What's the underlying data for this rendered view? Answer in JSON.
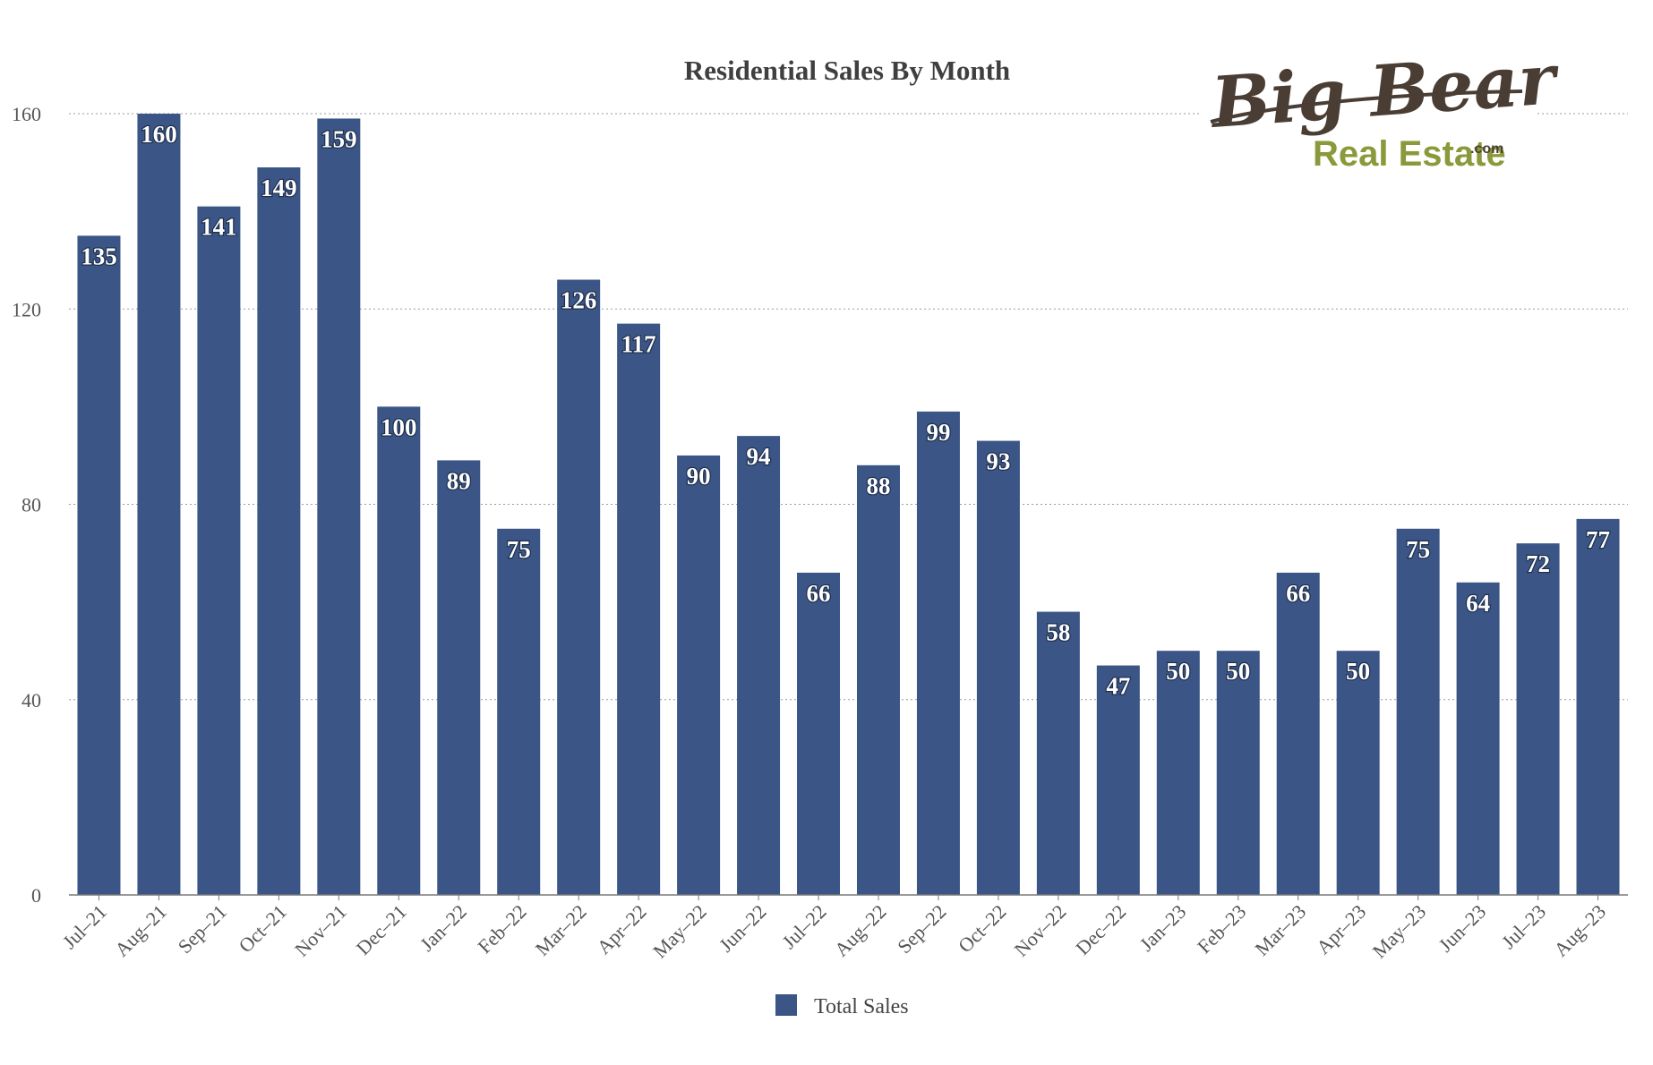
{
  "logo": {
    "line1": "Big Bear",
    "line2": "Real Estate",
    "suffix": ".com",
    "colors": {
      "dark": "#4a3d34",
      "green": "#8a9a3a"
    }
  },
  "chart_data": {
    "type": "bar",
    "title": "Residential Sales By Month",
    "xlabel": "",
    "ylabel": "",
    "ylim": [
      0,
      160
    ],
    "yticks": [
      0,
      40,
      80,
      120,
      160
    ],
    "grid": true,
    "legend_position": "bottom-center",
    "bar_color": "#3b5686",
    "categories": [
      "Jul–21",
      "Aug–21",
      "Sep–21",
      "Oct–21",
      "Nov–21",
      "Dec–21",
      "Jan–22",
      "Feb–22",
      "Mar–22",
      "Apr–22",
      "May–22",
      "Jun–22",
      "Jul–22",
      "Aug–22",
      "Sep–22",
      "Oct–22",
      "Nov–22",
      "Dec–22",
      "Jan–23",
      "Feb–23",
      "Mar–23",
      "Apr–23",
      "May–23",
      "Jun–23",
      "Jul–23",
      "Aug–23"
    ],
    "series": [
      {
        "name": "Total Sales",
        "values": [
          135,
          160,
          141,
          149,
          159,
          100,
          89,
          75,
          126,
          117,
          90,
          94,
          66,
          88,
          99,
          93,
          58,
          47,
          50,
          50,
          66,
          50,
          75,
          64,
          72,
          77
        ]
      }
    ]
  }
}
